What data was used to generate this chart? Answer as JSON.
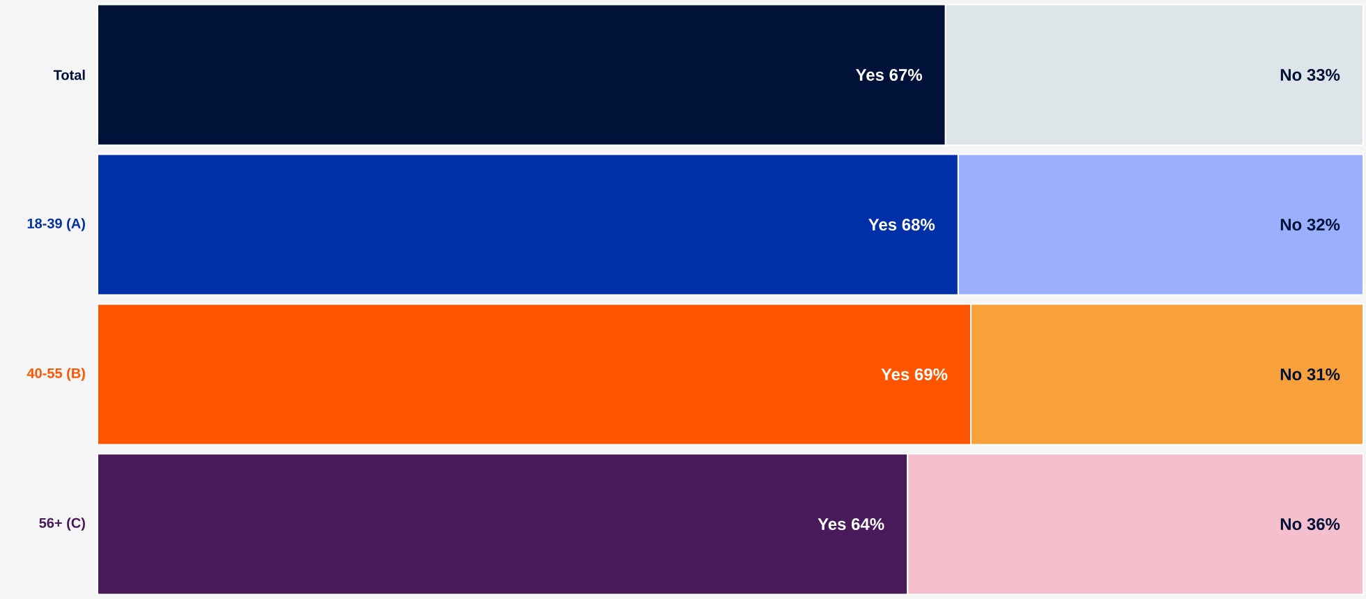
{
  "chart_data": {
    "type": "bar",
    "orientation": "horizontal",
    "stacked": true,
    "categories": [
      "Total",
      "18-39 (A)",
      "40-55 (B)",
      "56+ (C)"
    ],
    "series": [
      {
        "colors": [
          "#001238",
          "#0030a8",
          "#ff5500",
          "#481a5a"
        ],
        "values": [
          67,
          68,
          69,
          64
        ],
        "value_labels": [
          "Yes 67%",
          "Yes 68%",
          "Yes 69%",
          "Yes 64%"
        ]
      },
      {
        "colors": [
          "#dde5e8",
          "#9ab0ff",
          "#f8a13c",
          "#f6bfce"
        ],
        "values": [
          33,
          32,
          31,
          36
        ],
        "value_labels": [
          "No 33%",
          "No 32%",
          "No 31%",
          "No 36%"
        ]
      }
    ]
  }
}
